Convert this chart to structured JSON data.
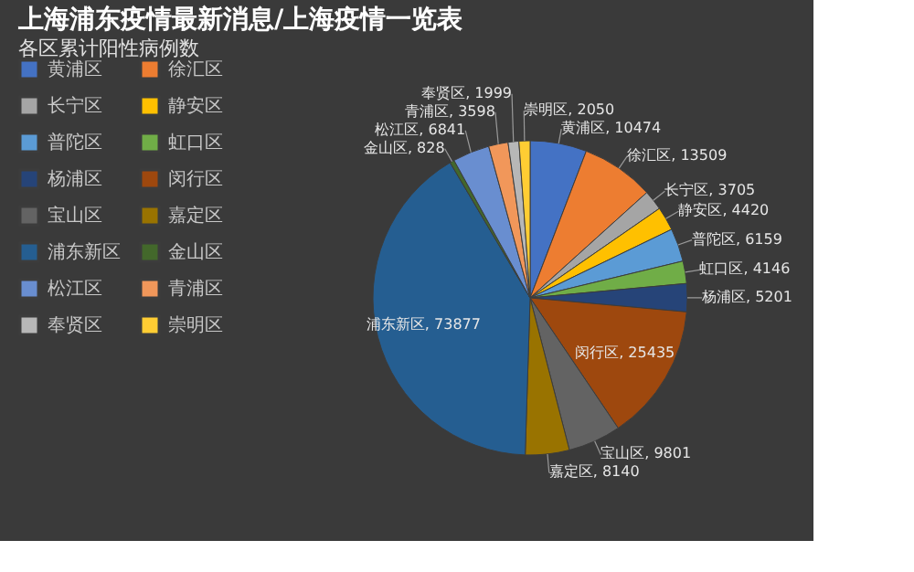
{
  "chart_data": {
    "type": "pie",
    "title": "各区累计阳性病例数",
    "annotations": [
      "上海浦东疫情最新消息/上海疫情一览表"
    ],
    "categories": [
      "黄浦区",
      "徐汇区",
      "长宁区",
      "静安区",
      "普陀区",
      "虹口区",
      "杨浦区",
      "闵行区",
      "宝山区",
      "嘉定区",
      "浦东新区",
      "金山区",
      "松江区",
      "青浦区",
      "奉贤区",
      "崇明区"
    ],
    "values": [
      10474,
      13509,
      3705,
      4420,
      6159,
      4146,
      5201,
      25435,
      9801,
      8140,
      73877,
      828,
      6841,
      3598,
      1999,
      2050
    ],
    "colors": [
      "#4472c4",
      "#ed7d31",
      "#a5a5a5",
      "#ffc000",
      "#5b9bd5",
      "#70ad47",
      "#264478",
      "#9e480e",
      "#636363",
      "#997300",
      "#255e91",
      "#43682b",
      "#698ed0",
      "#f1975a",
      "#b7b7b7",
      "#ffcd33"
    ],
    "value_labels": [
      "黄浦区, 10474",
      "徐汇区, 13509",
      "长宁区, 3705",
      "静安区, 4420",
      "普陀区, 6159",
      "虹口区, 4146",
      "杨浦区, 5201",
      "闵行区, 25435",
      "宝山区, 9801",
      "嘉定区, 8140",
      "浦东新区, 73877",
      "金山区, 828",
      "松江区, 6841",
      "青浦区, 3598",
      "奉贤区, 1999",
      "崇明区, 2050"
    ],
    "legend": "left"
  }
}
